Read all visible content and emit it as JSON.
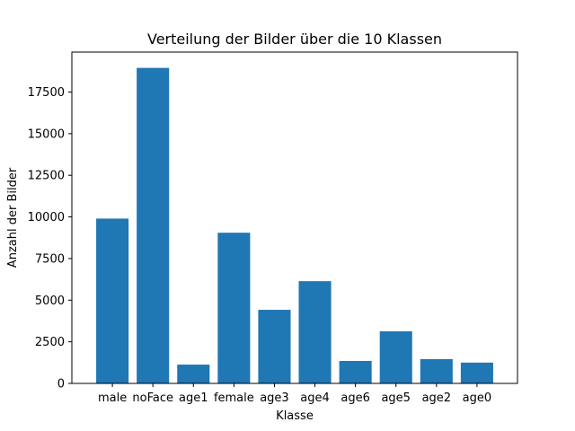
{
  "chart_data": {
    "type": "bar",
    "title": "Verteilung der Bilder über die 10 Klassen",
    "xlabel": "Klasse",
    "ylabel": "Anzahl der Bilder",
    "categories": [
      "male",
      "noFace",
      "age1",
      "female",
      "age3",
      "age4",
      "age6",
      "age5",
      "age2",
      "age0"
    ],
    "values": [
      9900,
      18950,
      1130,
      9050,
      4420,
      6140,
      1350,
      3130,
      1460,
      1250
    ],
    "ylim": [
      0,
      19900
    ],
    "yticks": [
      0,
      2500,
      5000,
      7500,
      10000,
      12500,
      15000,
      17500
    ],
    "ytick_labels": [
      "0",
      "2500",
      "5000",
      "7500",
      "10000",
      "12500",
      "15000",
      "17500"
    ],
    "grid": false,
    "legend": "none",
    "bar_color": "#1f77b4"
  }
}
